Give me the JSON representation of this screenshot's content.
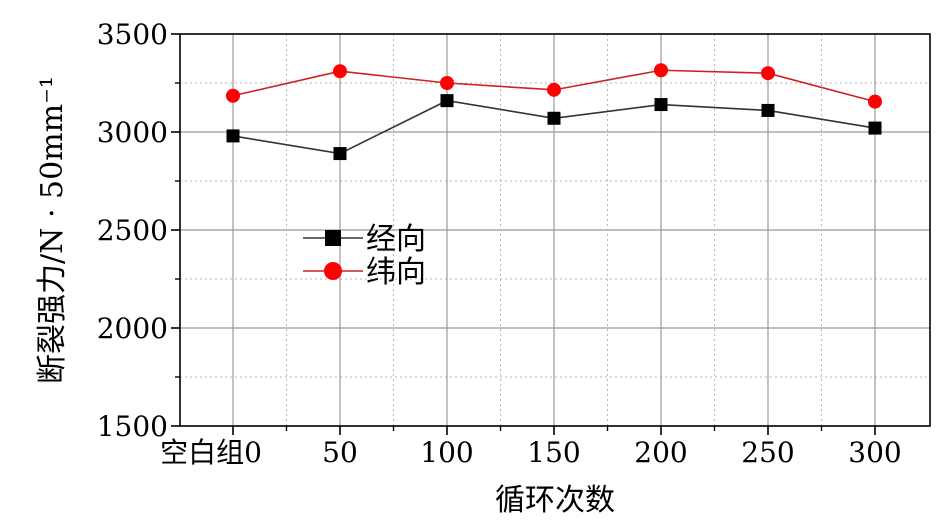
{
  "chart_data": {
    "type": "line",
    "categories": [
      "空白组0",
      "50",
      "100",
      "150",
      "200",
      "250",
      "300"
    ],
    "xlabel": "循环次数",
    "ylabel": "断裂强力/N · 50mm⁻¹",
    "ylim": [
      1500,
      3500
    ],
    "yticks": [
      1500,
      2000,
      2500,
      3000,
      3500
    ],
    "grid": true,
    "legend_position": "center-left",
    "series": [
      {
        "name": "经向",
        "color": "#000000",
        "line_color": "#333333",
        "marker": "square",
        "values": [
          2980,
          2890,
          3160,
          3070,
          3140,
          3110,
          3020
        ]
      },
      {
        "name": "纬向",
        "color": "#ff0000",
        "line_color": "#cc2222",
        "marker": "circle",
        "values": [
          3185,
          3310,
          3250,
          3215,
          3315,
          3300,
          3155
        ]
      }
    ]
  }
}
